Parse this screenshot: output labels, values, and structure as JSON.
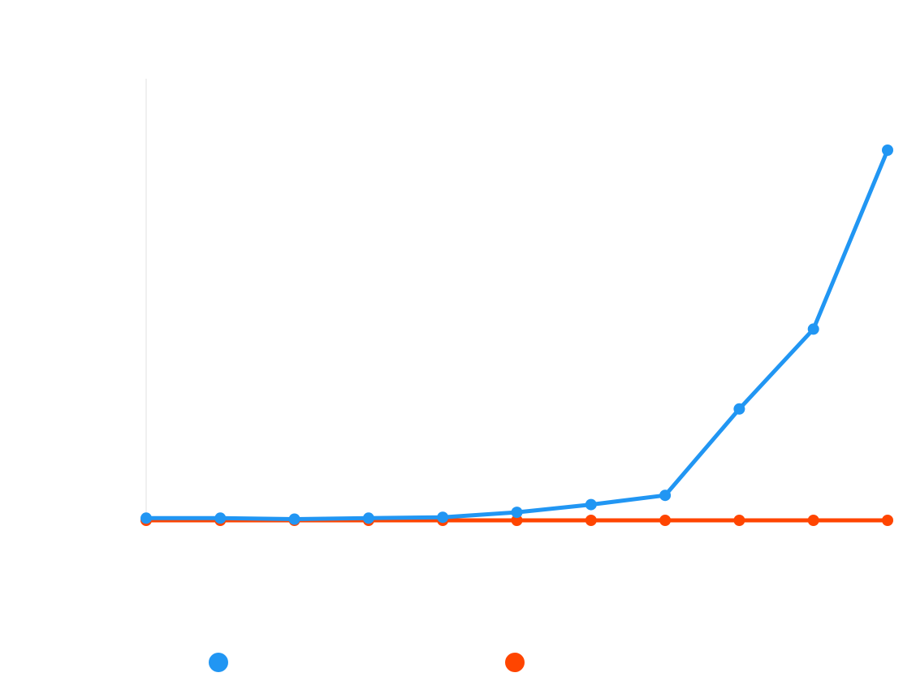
{
  "colors": {
    "series_1": "#2196F3",
    "series_2": "#FF4500",
    "axis_line": "#e0e0e0",
    "background": "#ffffff"
  },
  "chart_data": {
    "type": "line",
    "title": "",
    "xlabel": "",
    "ylabel": "",
    "tick_labels_visible": false,
    "grid": false,
    "legend_position": "bottom",
    "x": [
      1,
      2,
      3,
      4,
      5,
      6,
      7,
      8,
      9,
      10,
      11
    ],
    "ylim": [
      0,
      120
    ],
    "series": [
      {
        "values": [
          0.7,
          0.7,
          0.4,
          0.7,
          1.0,
          2.6,
          5.1,
          8.1,
          36.1,
          62.0,
          120.0
        ],
        "color": "#2196F3"
      },
      {
        "values": [
          0,
          0,
          0,
          0,
          0,
          0,
          0,
          0,
          0,
          0,
          0
        ],
        "color": "#FF4500"
      }
    ]
  }
}
